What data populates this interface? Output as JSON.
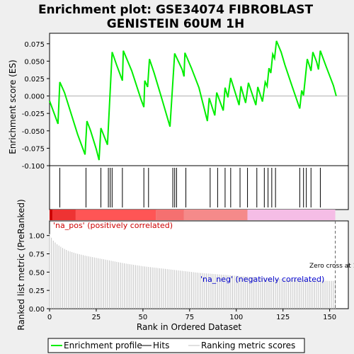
{
  "chart_data": {
    "type": "line",
    "title_line1": "Enrichment plot: GSE34074 FIBROBLAST",
    "title_line2": "GENISTEIN 60UM 1H",
    "es_panel": {
      "ylabel": "Enrichment score (ES)",
      "ylim": [
        -0.1,
        0.09
      ],
      "yticks": [
        -0.1,
        -0.075,
        -0.05,
        -0.025,
        0.0,
        0.025,
        0.05,
        0.075
      ],
      "ytick_labels": [
        "-0.100",
        "-0.075",
        "-0.050",
        "-0.025",
        "0.000",
        "0.025",
        "0.050",
        "0.075"
      ],
      "xlim": [
        0,
        160
      ],
      "series_name": "Enrichment profile",
      "color": "#00ee00",
      "points": [
        [
          0,
          -0.007
        ],
        [
          4.5,
          -0.04
        ],
        [
          5.5,
          0.02
        ],
        [
          8,
          0.005
        ],
        [
          15,
          -0.055
        ],
        [
          19,
          -0.084
        ],
        [
          20,
          -0.036
        ],
        [
          22,
          -0.05
        ],
        [
          25,
          -0.076
        ],
        [
          26.5,
          -0.092
        ],
        [
          27.5,
          -0.046
        ],
        [
          31,
          -0.07
        ],
        [
          33.5,
          0.063
        ],
        [
          36,
          0.044
        ],
        [
          39,
          0.022
        ],
        [
          39.5,
          0.065
        ],
        [
          44,
          0.036
        ],
        [
          49,
          -0.005
        ],
        [
          50.5,
          -0.016
        ],
        [
          51,
          0.022
        ],
        [
          52.5,
          0.013
        ],
        [
          53.5,
          0.053
        ],
        [
          56,
          0.033
        ],
        [
          60,
          -0.003
        ],
        [
          64.5,
          -0.044
        ],
        [
          67,
          0.061
        ],
        [
          71,
          0.038
        ],
        [
          72,
          0.028
        ],
        [
          72.5,
          0.062
        ],
        [
          76,
          0.04
        ],
        [
          80,
          0.012
        ],
        [
          84.5,
          -0.036
        ],
        [
          85.5,
          -0.003
        ],
        [
          88.5,
          -0.028
        ],
        [
          89.5,
          0.005
        ],
        [
          93,
          -0.021
        ],
        [
          94,
          0.012
        ],
        [
          95.5,
          -0.002
        ],
        [
          97,
          0.026
        ],
        [
          101.5,
          -0.013
        ],
        [
          102.5,
          0.014
        ],
        [
          105,
          -0.01
        ],
        [
          106.5,
          0.019
        ],
        [
          110.5,
          -0.013
        ],
        [
          111.5,
          0.013
        ],
        [
          114,
          -0.008
        ],
        [
          115.5,
          0.02
        ],
        [
          116.5,
          0.014
        ],
        [
          117.5,
          0.04
        ],
        [
          118.5,
          0.033
        ],
        [
          119.5,
          0.06
        ],
        [
          120.5,
          0.054
        ],
        [
          121.5,
          0.079
        ],
        [
          124,
          0.063
        ],
        [
          126,
          0.045
        ],
        [
          130,
          0.013
        ],
        [
          134,
          -0.018
        ],
        [
          135,
          0.008
        ],
        [
          136,
          0.001
        ],
        [
          138,
          0.053
        ],
        [
          140,
          0.036
        ],
        [
          141,
          0.063
        ],
        [
          143,
          0.049
        ],
        [
          144,
          0.038
        ],
        [
          145,
          0.065
        ],
        [
          148,
          0.043
        ],
        [
          152,
          0.015
        ],
        [
          153.5,
          0.0
        ]
      ]
    },
    "hits": [
      5.5,
      19.5,
      27.5,
      31.5,
      32.5,
      33.5,
      39,
      50.5,
      53,
      66,
      67,
      68,
      73,
      86,
      90,
      94,
      97,
      102,
      106,
      111,
      115,
      117,
      119,
      121,
      134,
      136,
      137.5,
      140,
      145
    ],
    "color_bar": {
      "segments": [
        {
          "from": 0,
          "to": 1.5,
          "color": "#cc0000"
        },
        {
          "from": 1.5,
          "to": 14,
          "color": "#ee3333"
        },
        {
          "from": 14,
          "to": 57,
          "color": "#ff5555"
        },
        {
          "from": 57,
          "to": 72,
          "color": "#f57070"
        },
        {
          "from": 72,
          "to": 106,
          "color": "#f58a8a"
        },
        {
          "from": 106,
          "to": 153,
          "color": "#f5bde6"
        }
      ]
    },
    "rank_panel": {
      "ylabel": "Ranked list metric (PreRanked)",
      "xlabel": "Rank in Ordered Dataset",
      "ylim": [
        0.0,
        1.2
      ],
      "yticks": [
        0.0,
        0.25,
        0.5,
        0.75,
        1.0
      ],
      "ytick_labels": [
        "0.00",
        "0.25",
        "0.50",
        "0.75",
        "1.00"
      ],
      "xticks": [
        0,
        25,
        50,
        75,
        100,
        125,
        150
      ],
      "xtick_labels": [
        "0",
        "25",
        "50",
        "75",
        "100",
        "125",
        "150"
      ],
      "xlim": [
        0,
        160
      ],
      "metric_points": [
        [
          0,
          1.02
        ],
        [
          1,
          0.97
        ],
        [
          2,
          0.93
        ],
        [
          4,
          0.88
        ],
        [
          7,
          0.83
        ],
        [
          10,
          0.79
        ],
        [
          15,
          0.75
        ],
        [
          20,
          0.72
        ],
        [
          30,
          0.67
        ],
        [
          40,
          0.62
        ],
        [
          50,
          0.58
        ],
        [
          60,
          0.55
        ],
        [
          70,
          0.52
        ],
        [
          80,
          0.49
        ],
        [
          90,
          0.47
        ],
        [
          100,
          0.45
        ],
        [
          110,
          0.43
        ],
        [
          120,
          0.41
        ],
        [
          130,
          0.4
        ],
        [
          140,
          0.39
        ],
        [
          150,
          0.38
        ],
        [
          153,
          0.38
        ]
      ],
      "zero_cross_x": 153,
      "zero_cross_label": "Zero cross at 153",
      "pos_label": "'na_pos' (positively correlated)",
      "neg_label": "'na_neg' (negatively correlated)"
    },
    "legend": [
      {
        "label": "Enrichment profile",
        "kind": "line",
        "color": "#00ee00"
      },
      {
        "label": "Hits",
        "kind": "line",
        "color": "#000000"
      },
      {
        "label": "Ranking metric scores",
        "kind": "line",
        "color": "#c0c0c0"
      }
    ]
  }
}
